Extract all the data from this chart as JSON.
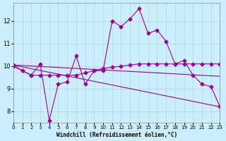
{
  "xlabel": "Windchill (Refroidissement éolien,°C)",
  "background_color": "#cceeff",
  "line_color": "#990099",
  "xlim": [
    0,
    23
  ],
  "ylim": [
    7.5,
    12.8
  ],
  "yticks": [
    8,
    9,
    10,
    11,
    12
  ],
  "xticks": [
    0,
    1,
    2,
    3,
    4,
    5,
    6,
    7,
    8,
    9,
    10,
    11,
    12,
    13,
    14,
    15,
    16,
    17,
    18,
    19,
    20,
    21,
    22,
    23
  ],
  "line1_x": [
    0,
    1,
    2,
    3,
    4,
    5,
    6,
    7,
    8,
    9,
    10,
    11,
    12,
    13,
    14,
    15,
    16,
    17,
    18,
    19,
    20,
    21,
    22,
    23
  ],
  "line1_y": [
    10.0,
    9.8,
    9.6,
    10.1,
    7.6,
    9.2,
    9.3,
    10.45,
    9.2,
    9.8,
    9.8,
    12.0,
    11.75,
    12.1,
    12.55,
    11.45,
    11.6,
    11.1,
    10.1,
    10.25,
    9.6,
    9.2,
    9.1,
    8.2
  ],
  "line2_x": [
    0,
    1,
    2,
    3,
    4,
    5,
    6,
    7,
    8,
    9,
    10,
    11,
    12,
    13,
    14,
    15,
    16,
    17,
    18,
    19,
    20,
    21,
    22,
    23
  ],
  "line2_y": [
    10.05,
    9.8,
    9.6,
    9.6,
    9.6,
    9.6,
    9.6,
    9.6,
    9.7,
    9.8,
    9.9,
    9.95,
    10.0,
    10.05,
    10.1,
    10.1,
    10.1,
    10.1,
    10.1,
    10.1,
    10.1,
    10.1,
    10.1,
    10.1
  ],
  "line3_x": [
    0,
    23
  ],
  "line3_y": [
    10.05,
    8.2
  ],
  "line4_x": [
    0,
    23
  ],
  "line4_y": [
    10.05,
    9.55
  ]
}
